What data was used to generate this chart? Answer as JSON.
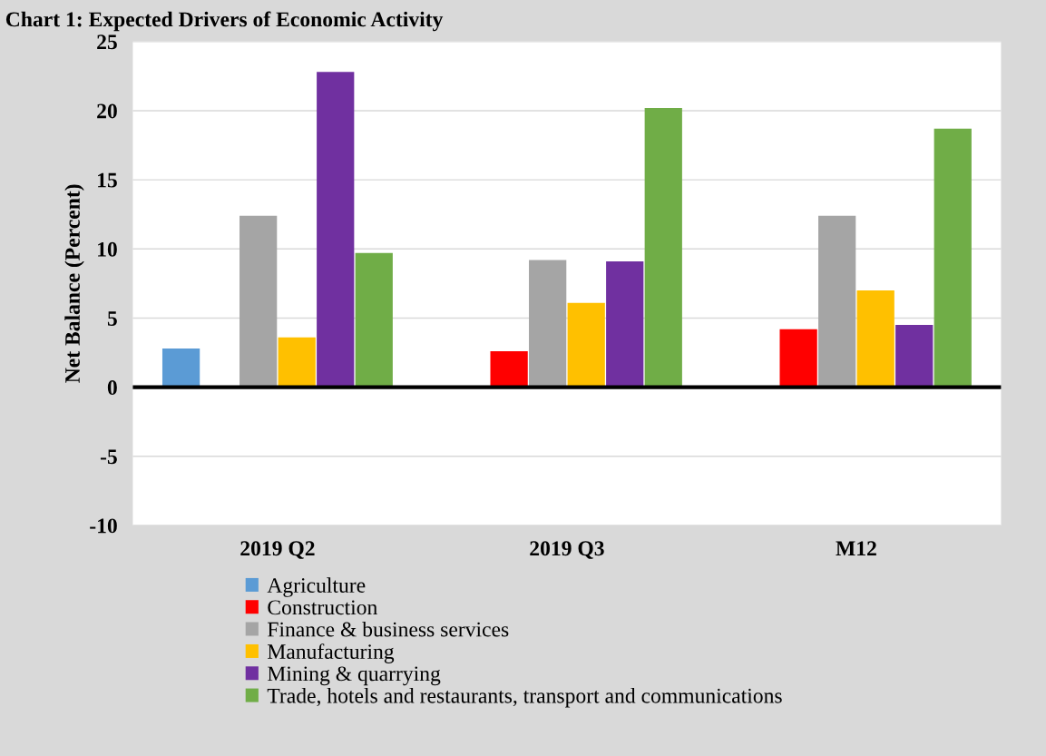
{
  "chart_data": {
    "type": "bar",
    "title": "Chart 1: Expected Drivers of Economic Activity",
    "ylabel": "Net Balance (Percent)",
    "categories": [
      "2019 Q2",
      "2019 Q3",
      "M12"
    ],
    "series": [
      {
        "name": "Agriculture",
        "color": "#5b9bd5",
        "values": [
          2.8,
          0,
          0
        ]
      },
      {
        "name": "Construction",
        "color": "#ff0000",
        "values": [
          0,
          2.6,
          4.2
        ]
      },
      {
        "name": "Finance & business services",
        "color": "#a5a5a5",
        "values": [
          12.4,
          9.2,
          12.4
        ]
      },
      {
        "name": "Manufacturing",
        "color": "#ffc000",
        "values": [
          3.6,
          6.1,
          7.0
        ]
      },
      {
        "name": "Mining & quarrying",
        "color": "#7030a0",
        "values": [
          22.8,
          9.1,
          4.5
        ]
      },
      {
        "name": "Trade, hotels and restaurants, transport and communications",
        "color": "#70ad47",
        "values": [
          9.7,
          20.2,
          18.7
        ]
      }
    ],
    "ylim": [
      -10,
      25
    ],
    "yticks": [
      -10,
      -5,
      0,
      5,
      10,
      15,
      20,
      25
    ],
    "grid": "y",
    "legend": "bottom"
  }
}
